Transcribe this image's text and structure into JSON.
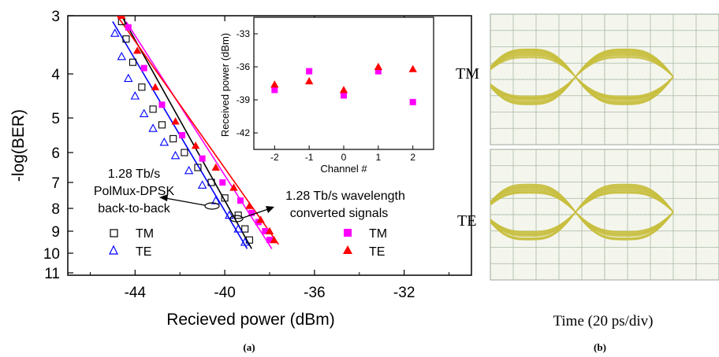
{
  "figure": {
    "panel_a_label": "(a)",
    "panel_b_label": "(b)"
  },
  "chart_data": [
    {
      "type": "scatter",
      "panel": "(a)",
      "xlabel": "Recieved power (dBm)",
      "ylabel": "-log(BER)",
      "xlim": [
        -47,
        -29
      ],
      "ylim": [
        3,
        11
      ],
      "y_scale": "inverted -log(BER)",
      "xticks": [
        "-44",
        "-40",
        "-36",
        "-32"
      ],
      "yticks": [
        "3",
        "4",
        "5",
        "6",
        "7",
        "8",
        "9",
        "10",
        "11"
      ],
      "annotations": {
        "left_line1": "1.28 Tb/s",
        "left_line2": "PolMux-DPSK",
        "left_line3": "back-to-back",
        "right_line1": "1.28 Tb/s wavelength",
        "right_line2": "converted signals"
      },
      "series": [
        {
          "name": "TM",
          "group": "back-to-back",
          "marker": "square-open",
          "color": "#000000",
          "points": [
            [
              -44.6,
              3.1
            ],
            [
              -44.4,
              3.4
            ],
            [
              -44.1,
              3.8
            ],
            [
              -43.7,
              4.3
            ],
            [
              -43.2,
              4.8
            ],
            [
              -42.8,
              5.2
            ],
            [
              -42.3,
              5.6
            ],
            [
              -41.8,
              6.0
            ],
            [
              -41.2,
              6.5
            ],
            [
              -40.6,
              7.0
            ],
            [
              -40.0,
              7.6
            ],
            [
              -39.4,
              8.3
            ],
            [
              -39.1,
              8.9
            ],
            [
              -38.9,
              9.4
            ]
          ]
        },
        {
          "name": "TE",
          "group": "back-to-back",
          "marker": "triangle-open",
          "color": "#0000ff",
          "points": [
            [
              -44.9,
              3.3
            ],
            [
              -44.6,
              3.7
            ],
            [
              -44.3,
              4.1
            ],
            [
              -44.0,
              4.5
            ],
            [
              -43.6,
              4.9
            ],
            [
              -43.2,
              5.3
            ],
            [
              -42.7,
              5.7
            ],
            [
              -42.2,
              6.1
            ],
            [
              -41.6,
              6.6
            ],
            [
              -41.0,
              7.1
            ],
            [
              -40.4,
              7.7
            ],
            [
              -39.8,
              8.3
            ],
            [
              -39.4,
              8.9
            ],
            [
              -39.1,
              9.5
            ]
          ]
        },
        {
          "name": "TM",
          "group": "wavelength converted",
          "marker": "square-filled",
          "color": "#ff00ff",
          "points": [
            [
              -44.3,
              3.2
            ],
            [
              -43.6,
              3.9
            ],
            [
              -42.8,
              4.7
            ],
            [
              -41.9,
              5.5
            ],
            [
              -41.0,
              6.2
            ],
            [
              -40.1,
              7.0
            ],
            [
              -39.3,
              7.7
            ],
            [
              -38.8,
              8.2
            ],
            [
              -38.5,
              8.6
            ],
            [
              -38.2,
              9.0
            ],
            [
              -38.0,
              9.4
            ]
          ]
        },
        {
          "name": "TE",
          "group": "wavelength converted",
          "marker": "triangle-filled",
          "color": "#ff0000",
          "points": [
            [
              -44.6,
              3.0
            ],
            [
              -43.9,
              3.6
            ],
            [
              -43.1,
              4.3
            ],
            [
              -42.2,
              5.1
            ],
            [
              -41.3,
              5.8
            ],
            [
              -40.4,
              6.5
            ],
            [
              -39.6,
              7.2
            ],
            [
              -38.9,
              7.9
            ],
            [
              -38.4,
              8.5
            ],
            [
              -38.0,
              9.0
            ],
            [
              -37.8,
              9.4
            ]
          ]
        }
      ],
      "fit_lines": [
        {
          "color": "#000000",
          "from": [
            -44.6,
            3.0
          ],
          "to": [
            -38.8,
            9.8
          ]
        },
        {
          "color": "#0000ff",
          "from": [
            -45.0,
            3.1
          ],
          "to": [
            -39.0,
            9.8
          ]
        },
        {
          "color": "#ff00ff",
          "from": [
            -44.4,
            3.1
          ],
          "to": [
            -37.9,
            9.8
          ]
        },
        {
          "color": "#ff0000",
          "from": [
            -44.8,
            3.0
          ],
          "to": [
            -37.6,
            9.6
          ]
        }
      ]
    },
    {
      "type": "scatter",
      "panel": "inset",
      "xlabel": "Channel #",
      "ylabel": "Received power (dBm)",
      "xlim": [
        -2.6,
        2.6
      ],
      "ylim": [
        -43.5,
        -31.5
      ],
      "xticks": [
        "-2",
        "-1",
        "0",
        "1",
        "2"
      ],
      "yticks": [
        "-33",
        "-36",
        "-39",
        "-42"
      ],
      "series": [
        {
          "name": "TM",
          "marker": "square-filled",
          "color": "#ff00ff",
          "points": [
            [
              -2,
              -38.1
            ],
            [
              -1,
              -36.4
            ],
            [
              0,
              -38.6
            ],
            [
              1,
              -36.4
            ],
            [
              2,
              -39.2
            ]
          ]
        },
        {
          "name": "TE",
          "marker": "triangle-filled",
          "color": "#ff0000",
          "points": [
            [
              -2,
              -37.6
            ],
            [
              -1,
              -37.3
            ],
            [
              0,
              -38.1
            ],
            [
              1,
              -36.0
            ],
            [
              2,
              -36.2
            ]
          ]
        }
      ]
    }
  ],
  "eye_diagrams": {
    "tm_label": "TM",
    "te_label": "TE",
    "time_label": "Time (20 ps/div)",
    "trace_color": "#c8c040",
    "background_color": "#f4f6ee",
    "grid_color": "#a9b8a0"
  }
}
